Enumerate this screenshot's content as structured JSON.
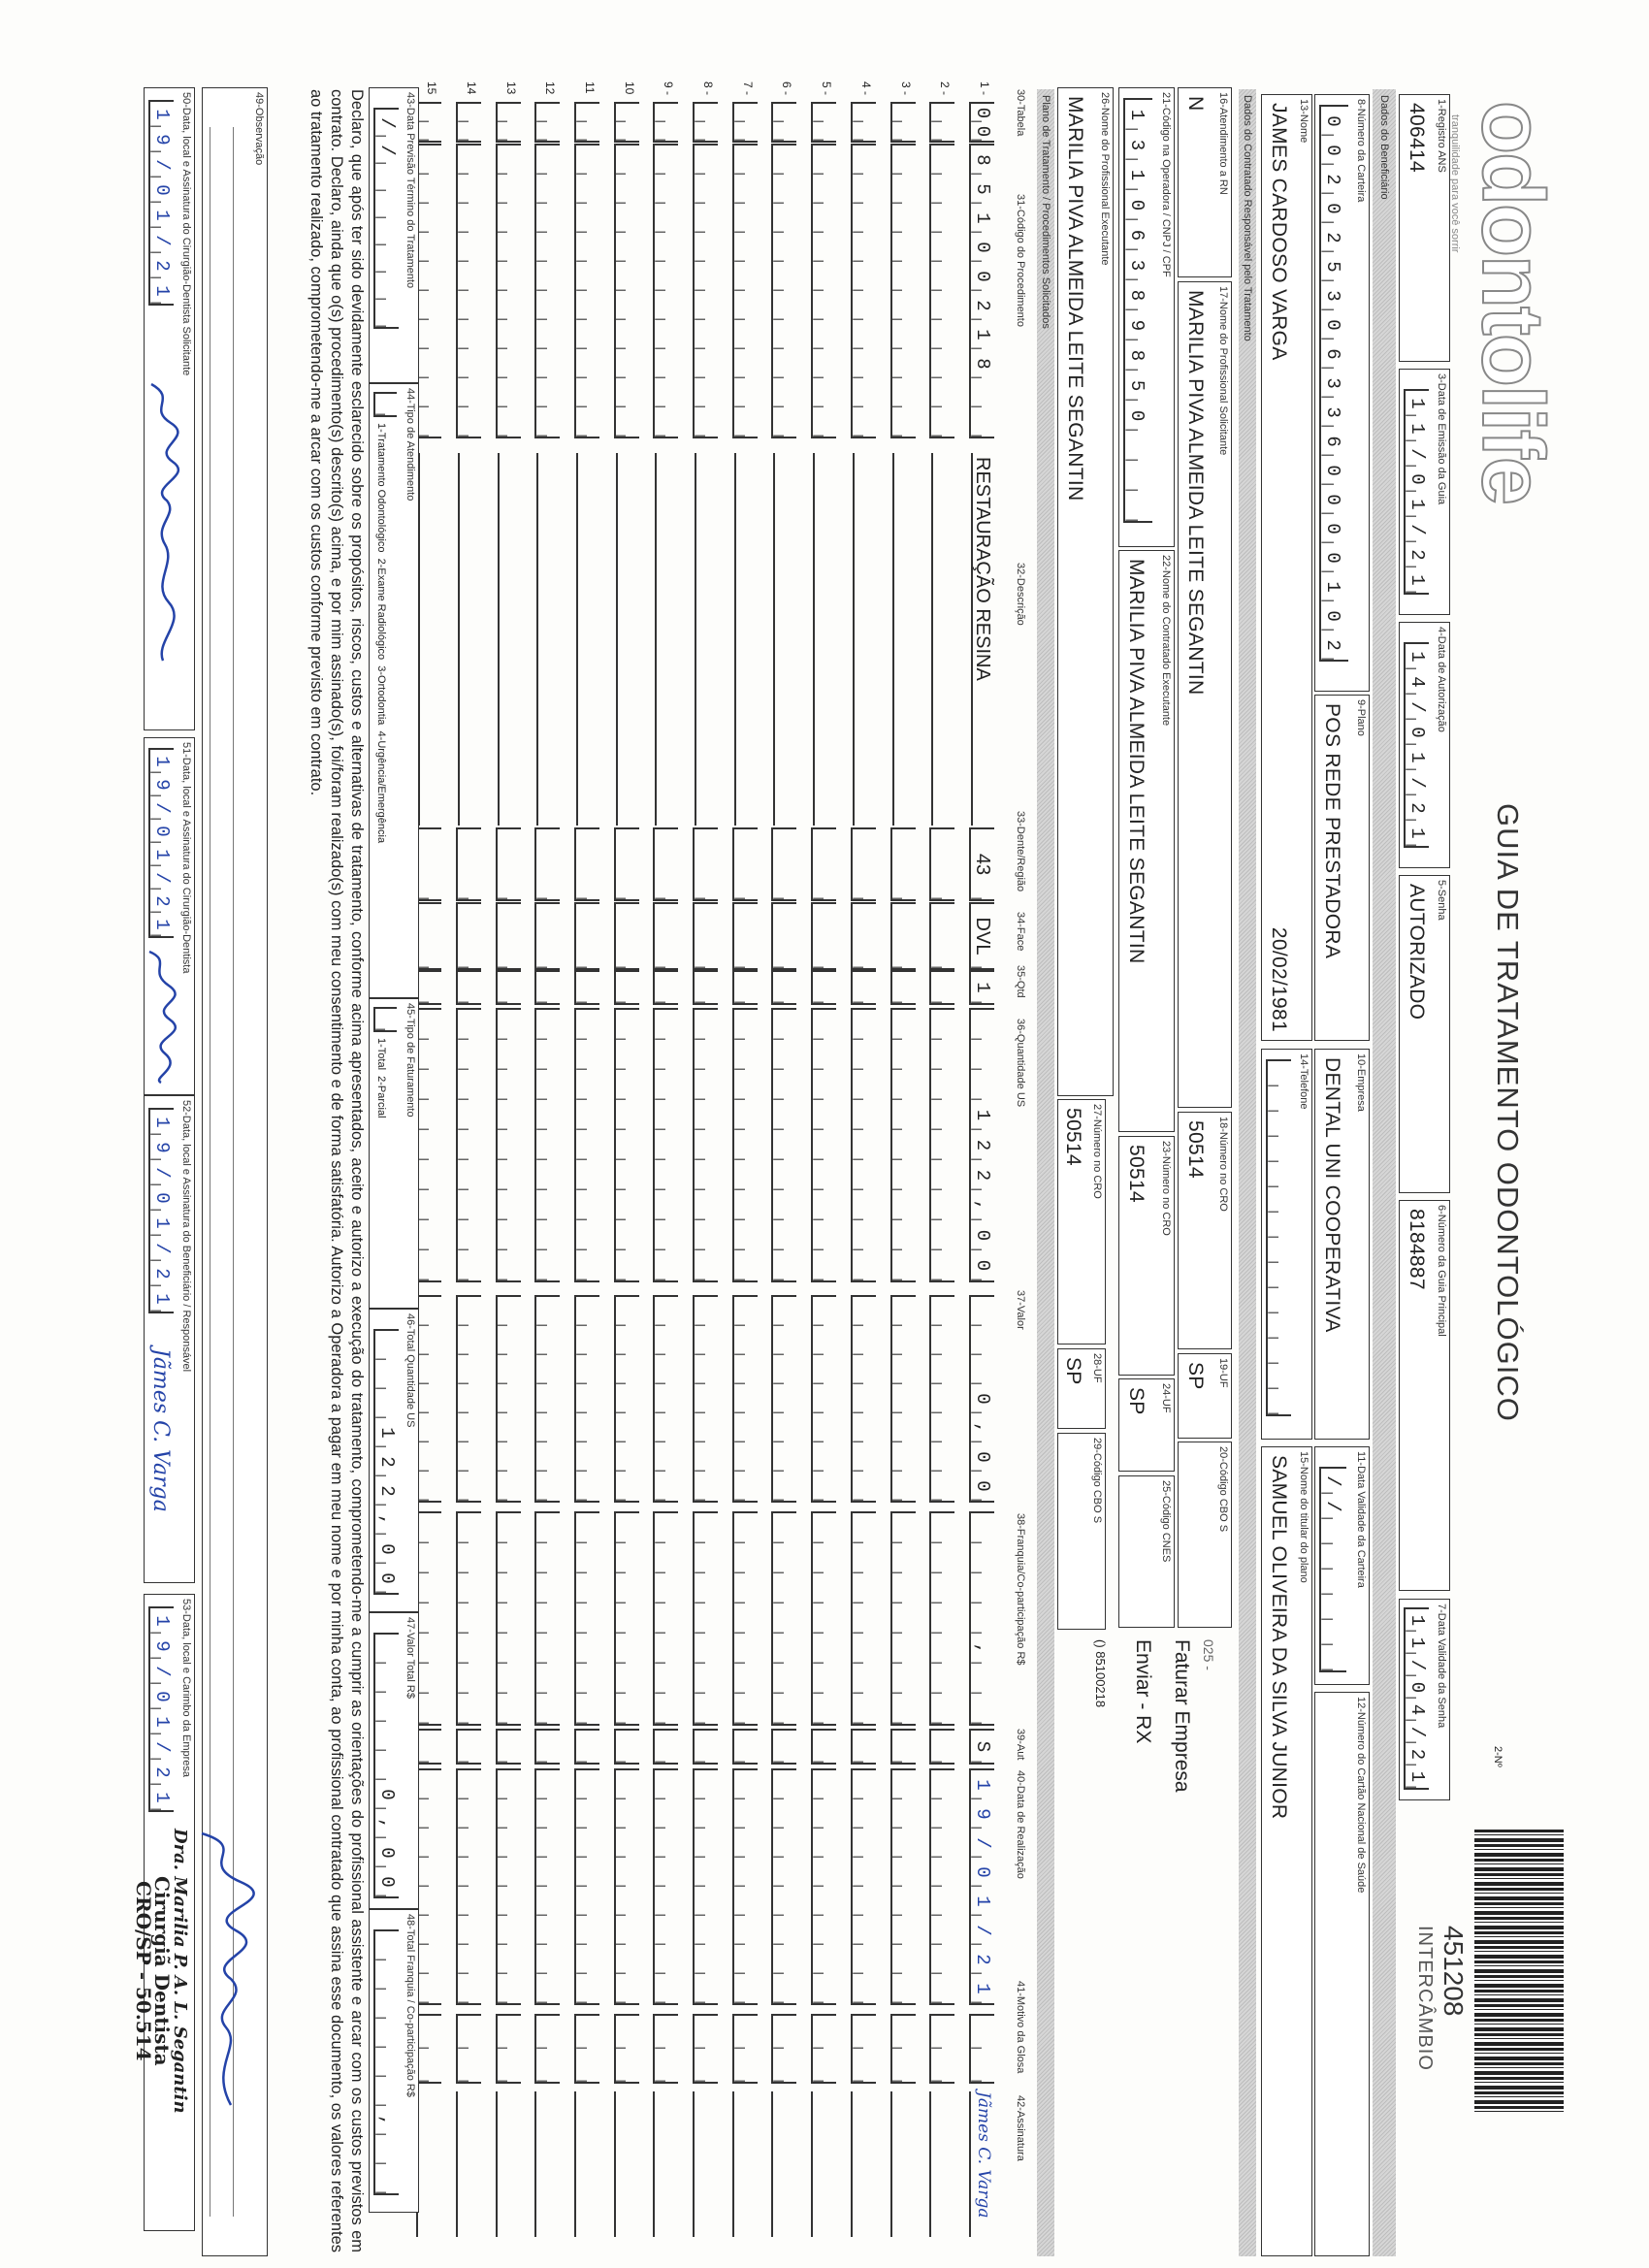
{
  "header": {
    "logo": "odontolife",
    "logo_tagline": "tranquilidade para você sorrir",
    "title": "GUIA DE TRATAMENTO ODONTOLÓGICO",
    "numero_label": "2-Nº",
    "guia_numero": "451208",
    "tipo": "INTERCÂMBIO"
  },
  "sections": {
    "beneficiario": "Dados do Beneficiário",
    "contratado": "Dados do Contratado Responsável pelo Tratamento",
    "plano": "Plano de Tratamento / Procedimentos Solicitados"
  },
  "fields": {
    "f1": {
      "label": "1-Registro ANS",
      "value": "406414"
    },
    "f3": {
      "label": "3-Data de Emissão da Guia",
      "value": "11/01/21"
    },
    "f4": {
      "label": "4-Data de Autorização",
      "value": "14/01/21"
    },
    "f5": {
      "label": "5-Senha",
      "value": "AUTORIZADO"
    },
    "f6": {
      "label": "6-Número da Guia Principal",
      "value": "8184887"
    },
    "f7": {
      "label": "7-Data Validade da Senha",
      "value": "11/04/21"
    },
    "f8": {
      "label": "8-Número da Carteira",
      "value": "0020253063360000102"
    },
    "f9": {
      "label": "9-Plano",
      "value": "POS REDE PRESTADORA"
    },
    "f10": {
      "label": "10-Empresa",
      "value": "DENTAL UNI COOPERATIVA"
    },
    "f11": {
      "label": "11-Data Validade da Carteira",
      "value": "//"
    },
    "f12": {
      "label": "12-Número do Cartão Nacional de Saúde",
      "value": ""
    },
    "f13": {
      "label": "13-Nome",
      "value": "JAMES CARDOSO VARGA",
      "extra": "20/02/1981"
    },
    "f14": {
      "label": "14-Telefone",
      "value": ""
    },
    "f15": {
      "label": "15-Nome do titular do plano",
      "value": "SAMUEL OLIVEIRA DA SILVA JUNIOR"
    },
    "f16": {
      "label": "16-Atendimento a RN",
      "value": "N"
    },
    "f17": {
      "label": "17-Nome do Profissional Solicitante",
      "value": "MARILIA PIVA ALMEIDA LEITE SEGANTIN"
    },
    "f18": {
      "label": "18-Número no CRO",
      "value": "50514"
    },
    "f19": {
      "label": "19-UF",
      "value": "SP"
    },
    "f20": {
      "label": "20-Código CBO S",
      "value": ""
    },
    "f21": {
      "label": "21-Código na Operadora / CNPJ / CPF",
      "value": "13106389850"
    },
    "f22": {
      "label": "22-Nome do Contratado Executante",
      "value": "MARILIA PIVA ALMEIDA LEITE SEGANTIN"
    },
    "f23": {
      "label": "23-Número no CRO",
      "value": "50514"
    },
    "f24": {
      "label": "24-UF",
      "value": "SP"
    },
    "f25": {
      "label": "25-Código CNES",
      "value": ""
    },
    "f26": {
      "label": "26-Nome do Profissional Executante",
      "value": "MARILIA PIVA ALMEIDA LEITE SEGANTIN"
    },
    "f27": {
      "label": "27-Número no CRO",
      "value": "50514"
    },
    "f28": {
      "label": "28-UF",
      "value": "SP"
    },
    "f29": {
      "label": "29-Código CBO S",
      "value": ""
    },
    "f43": {
      "label": "43-Data Previsão Término do Tratamento",
      "value": "//"
    },
    "f44": {
      "label": "44-Tipo de Atendimento",
      "options": "1-Tratamento Odontológico  2-Exame Radiológico  3-Ortodontia  4-Urgência/Emergência",
      "value": ""
    },
    "f45": {
      "label": "45-Tipo de Faturamento",
      "options": "1-Total  2-Parcial",
      "value": ""
    },
    "f46": {
      "label": "46-Total Quantidade US",
      "value": "122,00"
    },
    "f47": {
      "label": "47-Valor Total R$",
      "value": "0,00"
    },
    "f48": {
      "label": "48-Total Franquia / Co-participação R$",
      "value": ","
    },
    "f49": {
      "label": "49-Observação",
      "value": ""
    },
    "f50": {
      "label": "50-Data, local e Assinatura do Cirurgião-Dentista Solicitante",
      "value": "19/01/21"
    },
    "f51": {
      "label": "51-Data, local e Assinatura do Cirurgião-Dentista",
      "value": "19/01/21"
    },
    "f52": {
      "label": "52-Data, local e Assinatura do Beneficiário / Responsável",
      "value": "19/01/21",
      "signature": "Jãmes C. Varga"
    },
    "f53": {
      "label": "53-Data, local e Carimbo da Empresa",
      "value": "19/01/21"
    }
  },
  "notes": {
    "line1": "025 -",
    "line2": "Faturar Empresa",
    "line3": "Enviar - RX",
    "line4": "() 85100218"
  },
  "table": {
    "headers": {
      "tabela": "30-Tabela",
      "codigo": "31-Código do Procedimento",
      "descricao": "32-Descrição",
      "dente": "33-Dente/Região",
      "face": "34-Face",
      "qtd": "35-Qtd",
      "us": "36-Quantidade US",
      "valor": "37-Valor",
      "franquia": "38-Franquia/Co-participação R$",
      "aut": "39-Aut",
      "data": "40-Data de Realização",
      "glosa": "41-Motivo da Glosa",
      "assinatura": "42-Assinatura"
    },
    "rows": [
      {
        "n": "1 -",
        "tabela": "00",
        "codigo": "85100218",
        "descricao": "RESTAURAÇÃO RESINA",
        "dente": "43",
        "face": "DVL",
        "qtd": "1",
        "us": "122,00",
        "valor": "0,00",
        "franquia": ",",
        "aut": "S",
        "data": "19/01/21",
        "assinatura": "Jãmes C. Varga"
      },
      {
        "n": "2 -"
      },
      {
        "n": "3 -"
      },
      {
        "n": "4 -"
      },
      {
        "n": "5 -"
      },
      {
        "n": "6 -"
      },
      {
        "n": "7 -"
      },
      {
        "n": "8 -"
      },
      {
        "n": "9 -"
      },
      {
        "n": "10"
      },
      {
        "n": "11"
      },
      {
        "n": "12"
      },
      {
        "n": "13"
      },
      {
        "n": "14"
      },
      {
        "n": "15"
      }
    ]
  },
  "declaration": "Declaro, que após ter sido devidamente esclarecido sobre os propósitos, riscos, custos e alternativas de tratamento, conforme acima apresentados, aceito e autorizo a execução do tratamento, comprometendo-me a cumprir as orientações do profissional assistente e arcar com os custos previstos em contrato. Declaro, ainda que o(s) procedimento(s) descrito(s) acima, e por mim assinado(s), foi/foram realizado(s) com meu consentimento e de forma satisfatória. Autorizo a Operadora a pagar em meu nome e por minha conta, ao profissional contratado que assina esse documento, os valores referentes ao tratamento realizado, comprometendo-me a arcar com os custos conforme previsto em contrato.",
  "stamp": {
    "line1": "Dra. Marilia P. A. L. Segantin",
    "line2": "Cirurgiã Dentista",
    "line3": "CRO/SP - 50.514"
  },
  "colors": {
    "ink": "#222222",
    "handwriting": "#2443a8",
    "band": "#cccccc"
  }
}
